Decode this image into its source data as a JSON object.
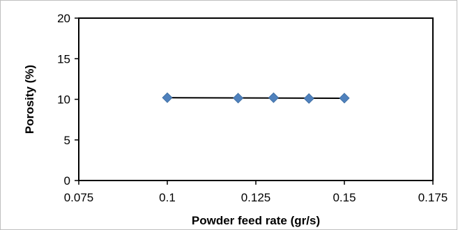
{
  "chart_data": {
    "type": "scatter",
    "title": "",
    "xlabel": "Powder feed rate (gr/s)",
    "ylabel": "Porosity (%)",
    "xlim": [
      0.075,
      0.175
    ],
    "ylim": [
      0,
      20
    ],
    "xticks": [
      0.075,
      0.1,
      0.125,
      0.15,
      0.175
    ],
    "xtick_labels": [
      "0.075",
      "0.1",
      "0.125",
      "0.15",
      "0.175"
    ],
    "yticks": [
      0,
      5,
      10,
      15,
      20
    ],
    "ytick_labels": [
      "0",
      "5",
      "10",
      "15",
      "20"
    ],
    "grid": false,
    "legend": "none",
    "series": [
      {
        "marker": "diamond",
        "color": "#4f81bd",
        "x": [
          0.1,
          0.12,
          0.13,
          0.14,
          0.15
        ],
        "y": [
          10.2,
          10.15,
          10.2,
          10.1,
          10.15
        ]
      }
    ],
    "trendline": {
      "type": "linear",
      "color": "#000000",
      "x": [
        0.1,
        0.15
      ],
      "y": [
        10.2,
        10.13
      ]
    }
  }
}
